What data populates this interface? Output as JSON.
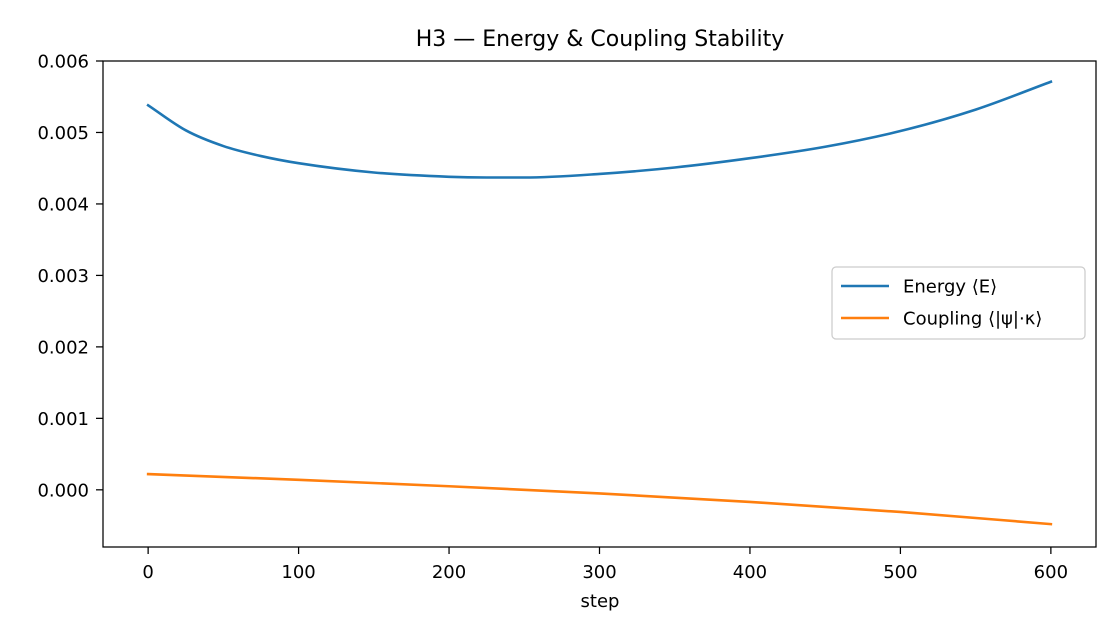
{
  "chart_data": {
    "type": "line",
    "title": "H3 — Energy & Coupling Stability",
    "xlabel": "step",
    "ylabel": "",
    "xlim": [
      -30,
      630
    ],
    "ylim": [
      -0.0008,
      0.006
    ],
    "xticks": [
      0,
      100,
      200,
      300,
      400,
      500,
      600
    ],
    "xtick_labels": [
      "0",
      "100",
      "200",
      "300",
      "400",
      "500",
      "600"
    ],
    "yticks": [
      0.0,
      0.001,
      0.002,
      0.003,
      0.004,
      0.005,
      0.006
    ],
    "ytick_labels": [
      "0.000",
      "0.001",
      "0.002",
      "0.003",
      "0.004",
      "0.005",
      "0.006"
    ],
    "grid": false,
    "legend_position": "center-right",
    "series": [
      {
        "name": "Energy ⟨E⟩",
        "color": "#1f77b4",
        "x": [
          0,
          25,
          50,
          75,
          100,
          150,
          200,
          225,
          250,
          300,
          350,
          400,
          450,
          500,
          550,
          600
        ],
        "y": [
          0.00538,
          0.00503,
          0.00481,
          0.00467,
          0.00457,
          0.00444,
          0.00438,
          0.00437,
          0.00437,
          0.00442,
          0.00451,
          0.00464,
          0.0048,
          0.00502,
          0.00532,
          0.00571
        ]
      },
      {
        "name": "Coupling ⟨|ψ|·κ⟩",
        "color": "#ff7f0e",
        "x": [
          0,
          100,
          200,
          300,
          400,
          500,
          600
        ],
        "y": [
          0.00022,
          0.00014,
          5e-05,
          -5e-05,
          -0.00017,
          -0.00031,
          -0.00048
        ]
      }
    ]
  }
}
